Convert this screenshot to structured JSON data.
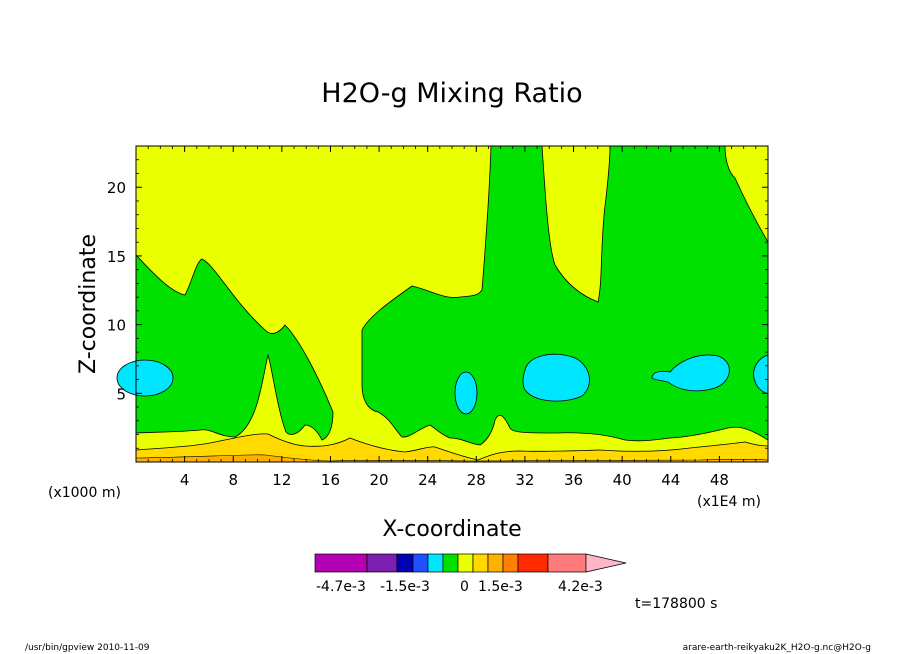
{
  "chart_data": {
    "type": "heatmap",
    "title": "H2O-g Mixing Ratio",
    "xlabel": "X-coordinate",
    "ylabel": "Z-coordinate",
    "x_unit": "(x1000 m)",
    "x_multiplier": "(x1E4 m)",
    "xlim": [
      0,
      52
    ],
    "ylim": [
      0,
      23
    ],
    "x_ticks": [
      4,
      8,
      12,
      16,
      20,
      24,
      28,
      32,
      36,
      40,
      44,
      48
    ],
    "y_ticks": [
      5,
      10,
      15,
      20
    ],
    "time_label": "t=178800 s",
    "colorbar": {
      "colors": [
        "#b300b3",
        "#7a1fb0",
        "#0000b4",
        "#1e50ff",
        "#00e6ff",
        "#00e100",
        "#eaff00",
        "#ffd900",
        "#ffb000",
        "#ff7f00",
        "#ff2a00",
        "#ff7a7a",
        "#ffb4c8"
      ],
      "labels": [
        "-4.7e-3",
        "-1.5e-3",
        "0",
        "1.5e-3",
        "4.2e-3"
      ]
    },
    "regions": {
      "background_yellow": "#eaff00",
      "green": "#00e100",
      "cyan": "#00e6ff",
      "gold": "#ffd900",
      "orange": "#ffb000"
    }
  },
  "footer": {
    "left": "/usr/bin/gpview  2010-11-09",
    "right": "arare-earth-reikyaku2K_H2O-g.nc@H2O-g"
  }
}
